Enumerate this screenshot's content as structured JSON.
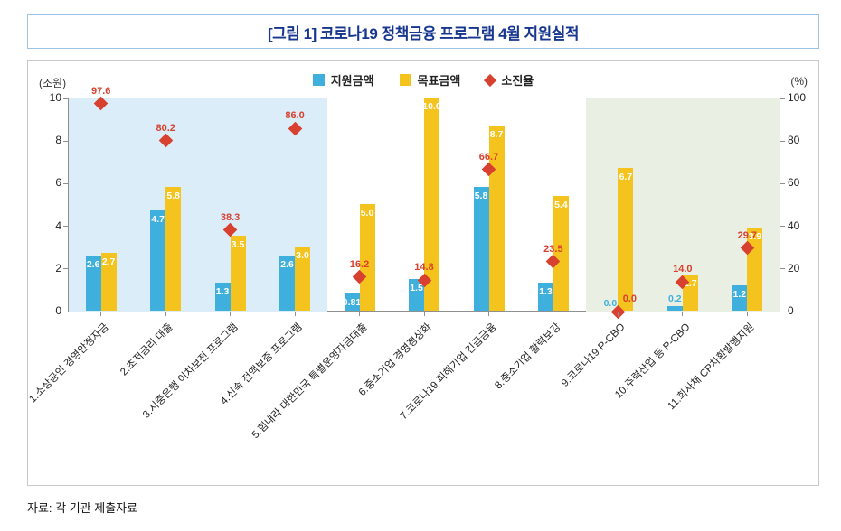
{
  "header": {
    "title": "[그림 1] 코로나19 정책금융 프로그램 4월 지원실적"
  },
  "source_note": "자료: 각 기관 제출자료",
  "axes": {
    "left_unit": "(조원)",
    "right_unit": "(%)",
    "left_ticks": [
      "0",
      "2",
      "4",
      "6",
      "8",
      "10"
    ],
    "right_ticks": [
      "0",
      "20",
      "40",
      "60",
      "80",
      "100"
    ]
  },
  "legend": {
    "position": "top-center",
    "items": [
      {
        "label": "지원금액",
        "shape": "square",
        "color": "#3fb0de"
      },
      {
        "label": "목표금액",
        "shape": "square",
        "color": "#f5c31d"
      },
      {
        "label": "소진율",
        "shape": "diamond",
        "color": "#d8402f"
      }
    ]
  },
  "chart_data": {
    "type": "bar",
    "title": "[그림 1] 코로나19 정책금융 프로그램 4월 지원실적",
    "xlabel": "",
    "ylabel_left": "(조원)",
    "ylabel_right": "(%)",
    "ylim_left": [
      0,
      10
    ],
    "ylim_right": [
      0,
      100
    ],
    "grid": false,
    "legend_position": "top-center",
    "categories": [
      "1.소상공인 경영안정자금",
      "2.초저금리 대출",
      "3.시중은행 이차보전 프로그램",
      "4.신속 전액보증 프로그램",
      "5.힘내라 대한민국 특별운영자금대출",
      "6.중소기업 경영정상화",
      "7.코로나19 피해기업 긴급금융",
      "8.중소기업 활력보강",
      "9.코로나19 P-CBO",
      "10.주력산업 등 P-CBO",
      "11.회사채 CP차환발행지원"
    ],
    "series": [
      {
        "name": "지원금액",
        "type": "bar",
        "axis": "left",
        "color": "#3fb0de",
        "values": [
          2.6,
          4.7,
          1.3,
          2.6,
          0.81,
          1.5,
          5.8,
          1.3,
          0.0,
          0.2,
          1.2
        ],
        "labels": [
          "2.6",
          "4.7",
          "1.3",
          "2.6",
          "0.81",
          "1.5",
          "5.8",
          "1.3",
          "0.0",
          "0.2",
          "1.2"
        ]
      },
      {
        "name": "목표금액",
        "type": "bar",
        "axis": "left",
        "color": "#f5c31d",
        "values": [
          2.7,
          5.8,
          3.5,
          3.0,
          5.0,
          10.0,
          8.7,
          5.4,
          6.7,
          1.7,
          3.9
        ],
        "labels": [
          "2.7",
          "5.8",
          "3.5",
          "3.0",
          "5.0",
          "10.0",
          "8.7",
          "5.4",
          "6.7",
          "1.7",
          "3.9"
        ]
      },
      {
        "name": "소진율",
        "type": "point-diamond",
        "axis": "right",
        "color": "#d8402f",
        "values": [
          97.6,
          80.2,
          38.3,
          86.0,
          16.2,
          14.8,
          66.7,
          23.5,
          0.0,
          14.0,
          29.7
        ],
        "labels": [
          "97.6",
          "80.2",
          "38.3",
          "86.0",
          "16.2",
          "14.8",
          "66.7",
          "23.5",
          "0.0",
          "14.0",
          "29.7"
        ]
      }
    ],
    "highlight_regions": [
      {
        "from_category_index": 0,
        "to_category_index": 4,
        "color": "#daedf8"
      },
      {
        "from_category_index": 8,
        "to_category_index": 11,
        "color": "#e9f0e3"
      }
    ]
  }
}
